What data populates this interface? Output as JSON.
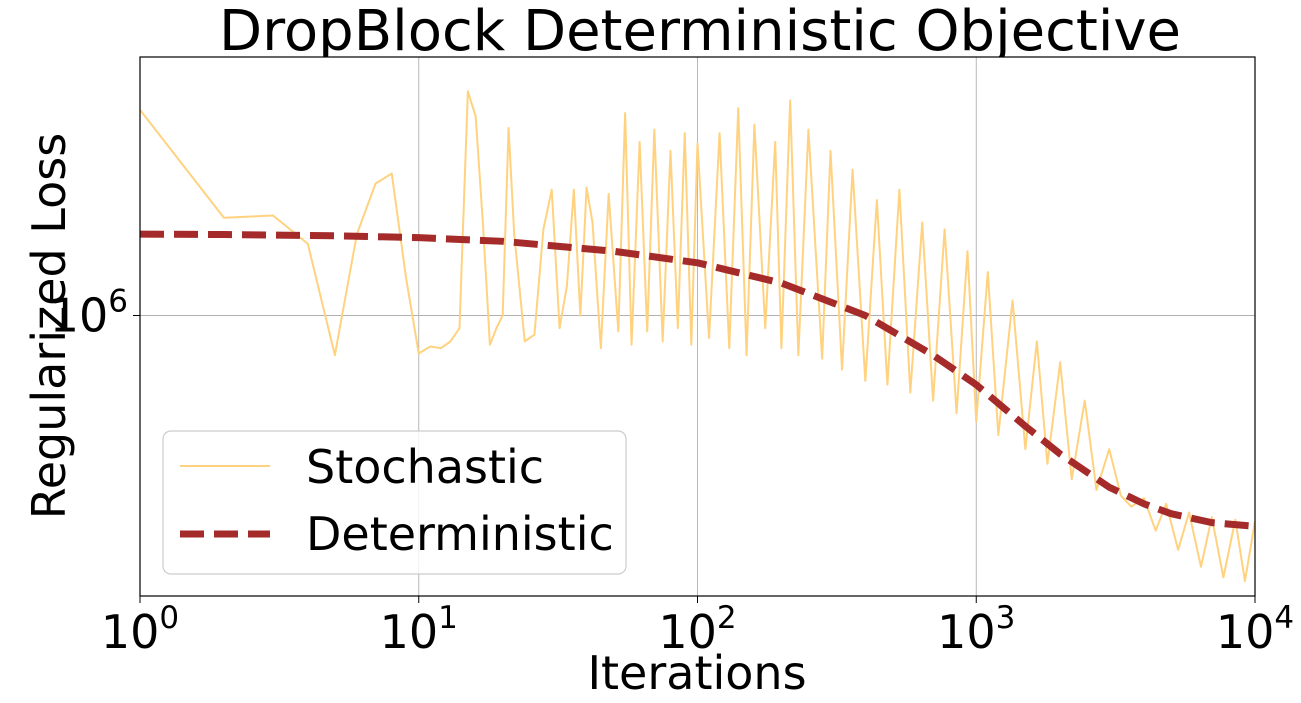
{
  "chart_data": {
    "type": "line",
    "title": "DropBlock Deterministic Objective",
    "xlabel": "Iterations",
    "ylabel": "Regularized Loss",
    "xscale": "log",
    "yscale": "log",
    "xlim": [
      1,
      10000
    ],
    "ylim": [
      405000,
      2300000
    ],
    "grid": true,
    "legend_position": "lower-left",
    "x_ticks": [
      {
        "base": "10",
        "exp": "0",
        "value": 1
      },
      {
        "base": "10",
        "exp": "1",
        "value": 10
      },
      {
        "base": "10",
        "exp": "2",
        "value": 100
      },
      {
        "base": "10",
        "exp": "3",
        "value": 1000
      },
      {
        "base": "10",
        "exp": "4",
        "value": 10000
      }
    ],
    "y_ticks": [
      {
        "base": "10",
        "exp": "6",
        "value": 1000000
      }
    ],
    "series": [
      {
        "name": "Stochastic",
        "style": "solid",
        "color": "#ffd27f",
        "points": [
          [
            1,
            1940000
          ],
          [
            2,
            1370000
          ],
          [
            3,
            1380000
          ],
          [
            4,
            1260000
          ],
          [
            5,
            880000
          ],
          [
            6,
            1300000
          ],
          [
            7,
            1530000
          ],
          [
            8,
            1580000
          ],
          [
            9,
            1130000
          ],
          [
            10,
            885000
          ],
          [
            11,
            905000
          ],
          [
            12,
            900000
          ],
          [
            13,
            920000
          ],
          [
            14,
            960000
          ],
          [
            15,
            2060000
          ],
          [
            16,
            1900000
          ],
          [
            17,
            1340000
          ],
          [
            18,
            910000
          ],
          [
            19,
            960000
          ],
          [
            20,
            1000000
          ],
          [
            21,
            1830000
          ],
          [
            22,
            1300000
          ],
          [
            24,
            920000
          ],
          [
            26,
            940000
          ],
          [
            28,
            1320000
          ],
          [
            30,
            1500000
          ],
          [
            32,
            960000
          ],
          [
            34,
            1100000
          ],
          [
            36,
            1500000
          ],
          [
            38,
            1000000
          ],
          [
            40,
            1510000
          ],
          [
            42,
            1350000
          ],
          [
            45,
            900000
          ],
          [
            48,
            1480000
          ],
          [
            52,
            950000
          ],
          [
            55,
            1920000
          ],
          [
            58,
            910000
          ],
          [
            62,
            1750000
          ],
          [
            66,
            950000
          ],
          [
            70,
            1820000
          ],
          [
            75,
            920000
          ],
          [
            80,
            1700000
          ],
          [
            85,
            960000
          ],
          [
            90,
            1800000
          ],
          [
            95,
            910000
          ],
          [
            100,
            1740000
          ],
          [
            110,
            930000
          ],
          [
            120,
            1800000
          ],
          [
            130,
            900000
          ],
          [
            140,
            1950000
          ],
          [
            150,
            880000
          ],
          [
            160,
            1850000
          ],
          [
            175,
            960000
          ],
          [
            190,
            1750000
          ],
          [
            200,
            900000
          ],
          [
            215,
            2000000
          ],
          [
            230,
            880000
          ],
          [
            250,
            1820000
          ],
          [
            280,
            870000
          ],
          [
            300,
            1700000
          ],
          [
            330,
            840000
          ],
          [
            360,
            1600000
          ],
          [
            400,
            810000
          ],
          [
            440,
            1450000
          ],
          [
            480,
            800000
          ],
          [
            530,
            1500000
          ],
          [
            580,
            780000
          ],
          [
            640,
            1350000
          ],
          [
            700,
            760000
          ],
          [
            770,
            1320000
          ],
          [
            850,
            730000
          ],
          [
            930,
            1230000
          ],
          [
            1000,
            710000
          ],
          [
            1100,
            1150000
          ],
          [
            1200,
            680000
          ],
          [
            1350,
            1050000
          ],
          [
            1500,
            650000
          ],
          [
            1650,
            920000
          ],
          [
            1800,
            620000
          ],
          [
            2000,
            860000
          ],
          [
            2200,
            590000
          ],
          [
            2450,
            760000
          ],
          [
            2700,
            570000
          ],
          [
            3000,
            650000
          ],
          [
            3300,
            560000
          ],
          [
            3600,
            540000
          ],
          [
            4000,
            555000
          ],
          [
            4400,
            500000
          ],
          [
            4800,
            545000
          ],
          [
            5300,
            470000
          ],
          [
            5800,
            530000
          ],
          [
            6400,
            445000
          ],
          [
            7000,
            522000
          ],
          [
            7700,
            430000
          ],
          [
            8500,
            518000
          ],
          [
            9200,
            425000
          ],
          [
            10000,
            515000
          ]
        ]
      },
      {
        "name": "Deterministic",
        "style": "dashed",
        "color": "#a52a2a",
        "points": [
          [
            1,
            1300000
          ],
          [
            2,
            1298000
          ],
          [
            5,
            1293000
          ],
          [
            10,
            1285000
          ],
          [
            20,
            1270000
          ],
          [
            50,
            1230000
          ],
          [
            100,
            1185000
          ],
          [
            200,
            1110000
          ],
          [
            400,
            1000000
          ],
          [
            700,
            880000
          ],
          [
            1000,
            800000
          ],
          [
            1500,
            700000
          ],
          [
            2000,
            640000
          ],
          [
            3000,
            575000
          ],
          [
            4000,
            545000
          ],
          [
            5000,
            528000
          ],
          [
            7000,
            513000
          ],
          [
            10000,
            507000
          ]
        ]
      }
    ]
  }
}
